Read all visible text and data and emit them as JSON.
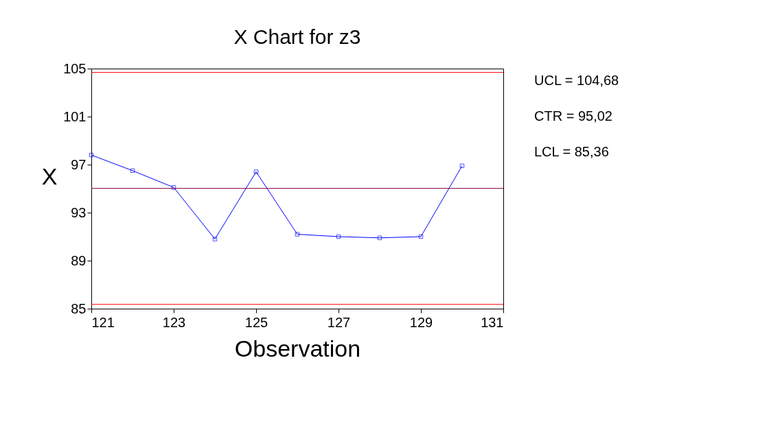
{
  "chart_data": {
    "type": "line",
    "title": "X Chart for z3",
    "xlabel": "Observation",
    "ylabel": "X",
    "x": [
      121,
      122,
      123,
      124,
      125,
      126,
      127,
      128,
      129,
      130
    ],
    "series": [
      {
        "color": "#0000ff",
        "values": [
          97.8,
          96.5,
          95.1,
          90.8,
          96.4,
          91.2,
          91.0,
          90.9,
          91.0,
          96.9
        ]
      }
    ],
    "xlim": [
      121,
      131
    ],
    "xticks": [
      121,
      123,
      125,
      127,
      129,
      131
    ],
    "ylim": [
      85,
      105
    ],
    "yticks": [
      85,
      89,
      93,
      97,
      101,
      105
    ],
    "ref_lines": [
      {
        "axis": "y",
        "value": 104.68,
        "color": "#ff0000"
      },
      {
        "axis": "y",
        "value": 95.02,
        "color": "#800040"
      },
      {
        "axis": "y",
        "value": 85.36,
        "color": "#ff0000"
      }
    ],
    "annotations": [
      "UCL = 104,68",
      "CTR = 95,02",
      "LCL = 85,36"
    ],
    "marker": "square",
    "line_style": "solid",
    "grid": false
  }
}
